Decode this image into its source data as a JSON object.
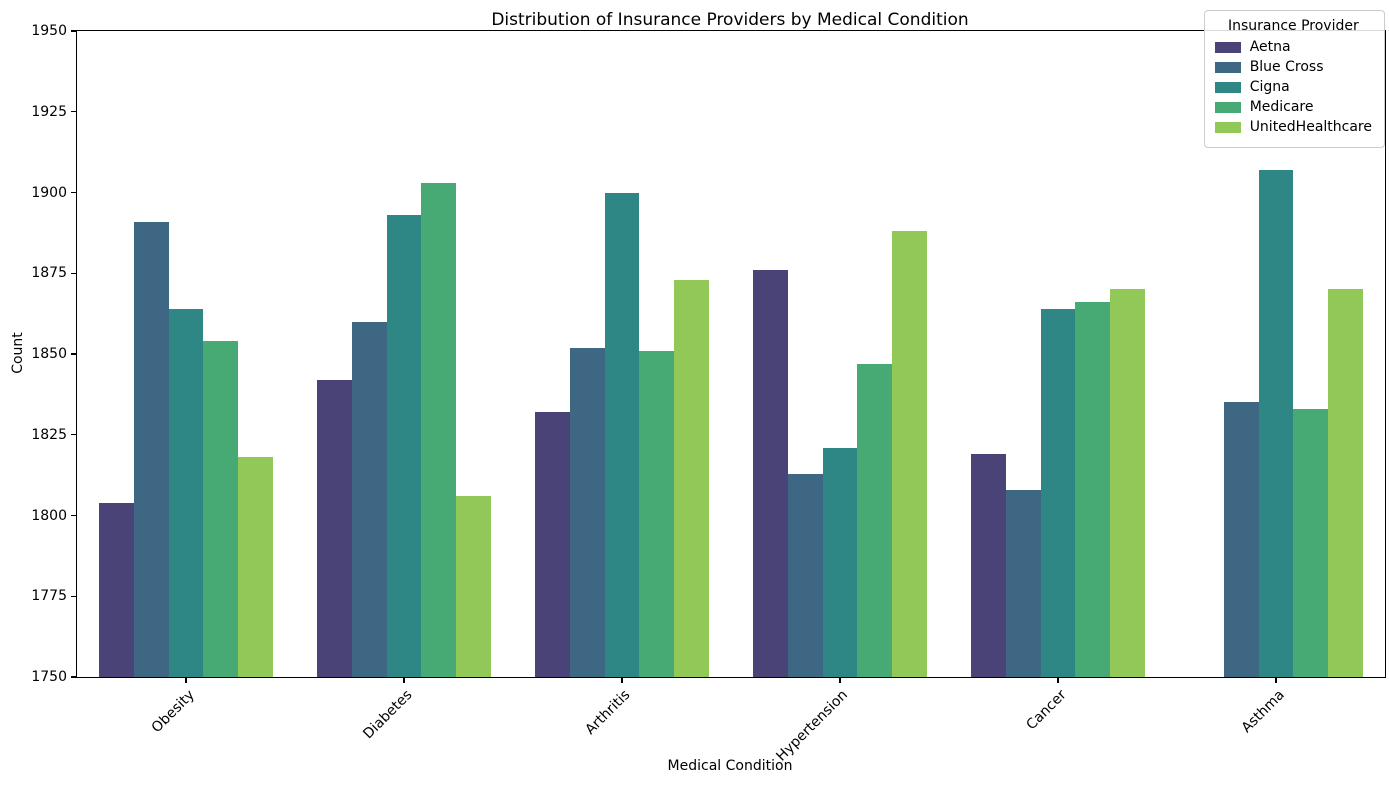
{
  "figure": {
    "title": "Distribution of Insurance Providers by Medical Condition"
  },
  "chart_data": {
    "type": "bar",
    "title": "Distribution of Insurance Providers by Medical Condition",
    "xlabel": "Medical Condition",
    "ylabel": "Count",
    "ylim": [
      1750,
      1950
    ],
    "yticks": [
      1750,
      1775,
      1800,
      1825,
      1850,
      1875,
      1900,
      1925,
      1950
    ],
    "grid": false,
    "categories": [
      "Obesity",
      "Diabetes",
      "Arthritis",
      "Hypertension",
      "Cancer",
      "Asthma"
    ],
    "xtick_rotation_deg": 45,
    "legend": {
      "title": "Insurance Provider",
      "position": "upper right"
    },
    "series": [
      {
        "name": "Aetna",
        "color": "#4a4377",
        "values": [
          1804,
          1842,
          1832,
          1876,
          1819,
          null
        ]
      },
      {
        "name": "Blue Cross",
        "color": "#3e6783",
        "values": [
          1891,
          1860,
          1852,
          1813,
          1808,
          1835
        ]
      },
      {
        "name": "Cigna",
        "color": "#2e8784",
        "values": [
          1864,
          1893,
          1900,
          1821,
          1864,
          1907
        ]
      },
      {
        "name": "Medicare",
        "color": "#47a974",
        "values": [
          1854,
          1903,
          1851,
          1847,
          1866,
          1833
        ]
      },
      {
        "name": "UnitedHealthcare",
        "color": "#92c857",
        "values": [
          1818,
          1806,
          1873,
          1888,
          1870,
          1870
        ]
      }
    ]
  }
}
